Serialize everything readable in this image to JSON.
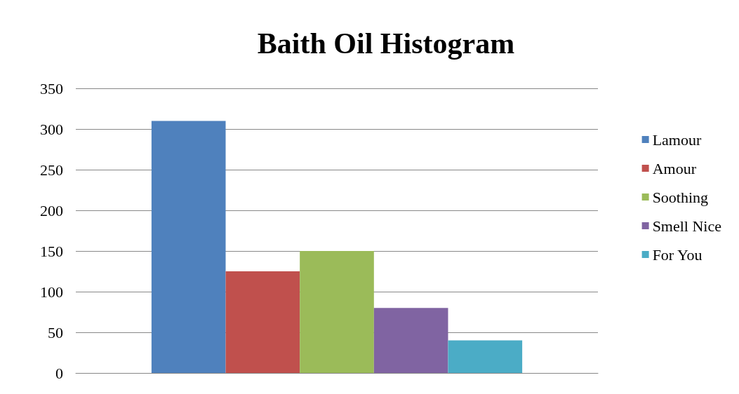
{
  "chart_data": {
    "type": "bar",
    "title": "Baith Oil Histogram",
    "categories": [
      null
    ],
    "series": [
      {
        "name": "Lamour",
        "color": "#4f81bd",
        "values": [
          310
        ]
      },
      {
        "name": "Amour",
        "color": "#c0504d",
        "values": [
          125
        ]
      },
      {
        "name": "Soothing",
        "color": "#9bbb59",
        "values": [
          150
        ]
      },
      {
        "name": "Smell Nice",
        "color": "#8064a2",
        "values": [
          80
        ]
      },
      {
        "name": "For You",
        "color": "#4bacc6",
        "values": [
          40
        ]
      }
    ],
    "ylim": [
      0,
      350
    ],
    "yticks": [
      0,
      50,
      100,
      150,
      200,
      250,
      300,
      350
    ],
    "grid": "y",
    "legend": "right"
  }
}
